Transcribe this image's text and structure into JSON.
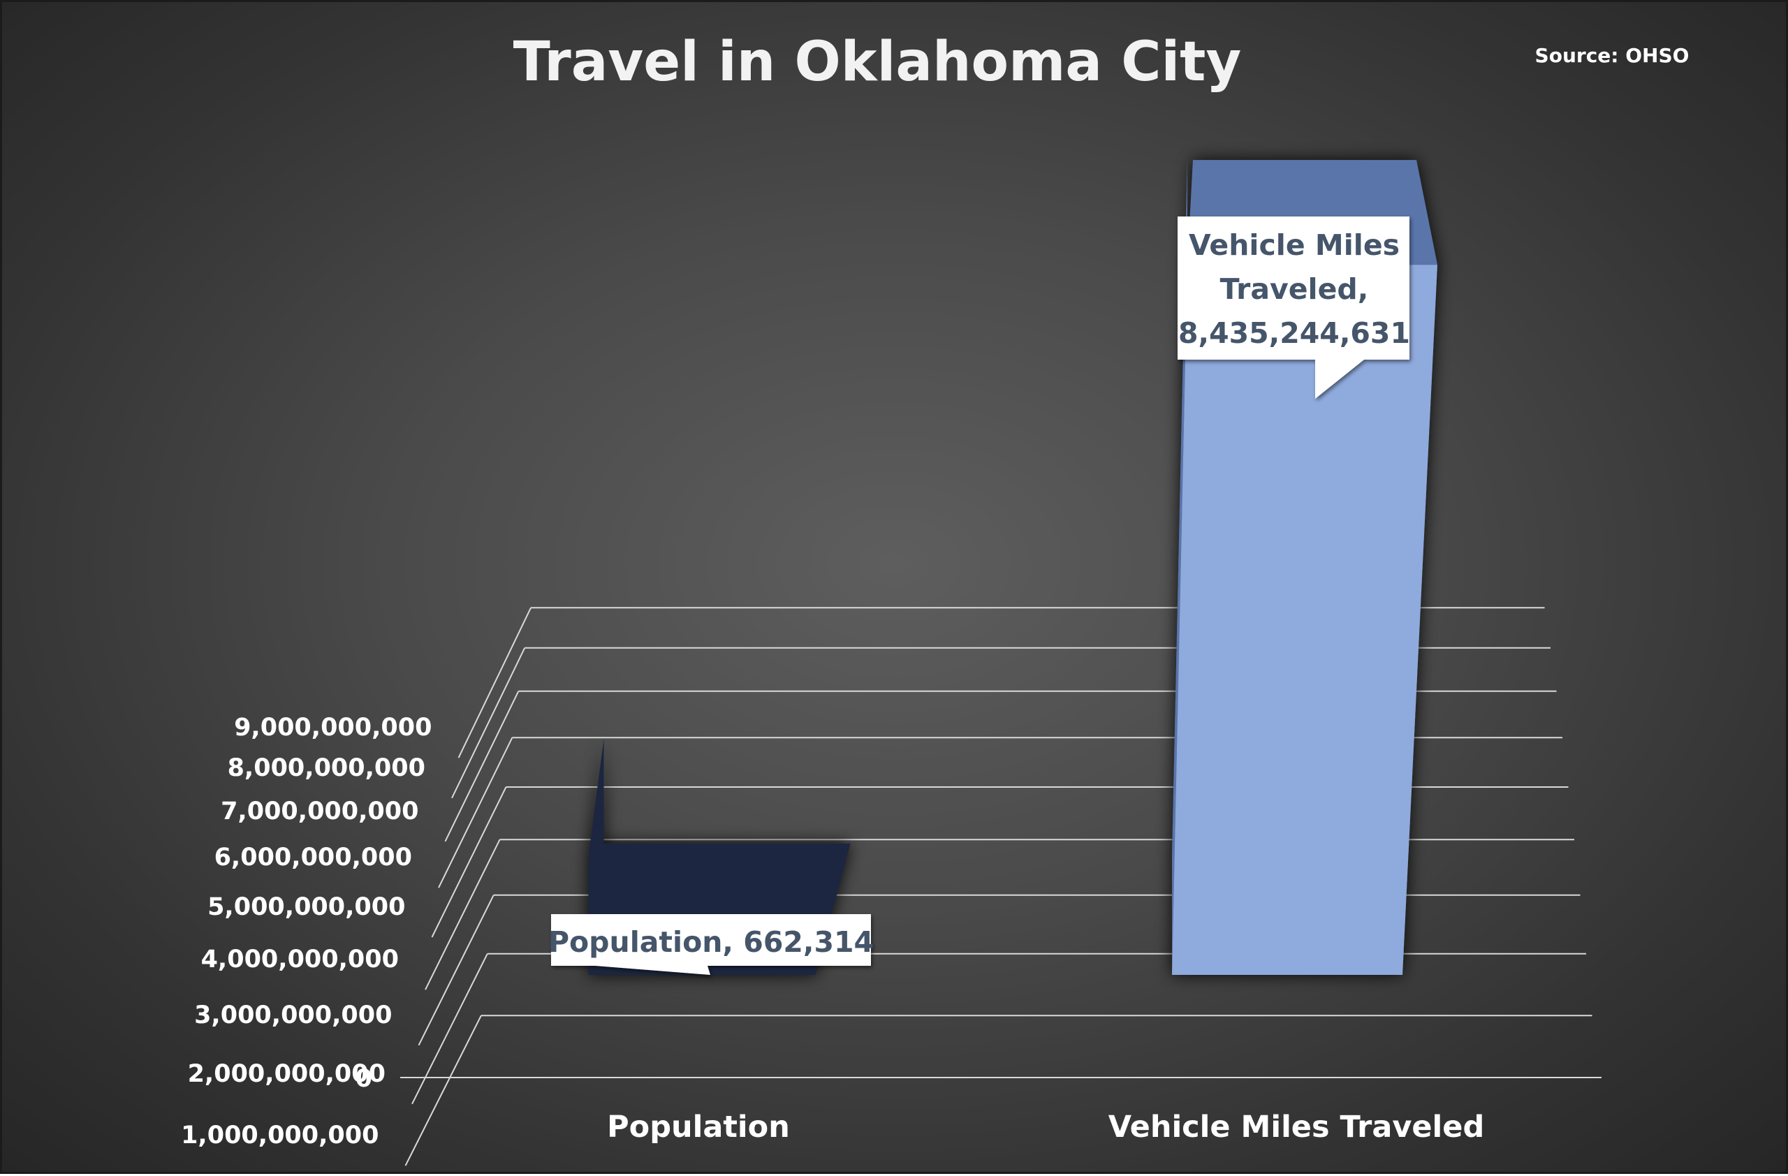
{
  "chart_data": {
    "type": "bar",
    "style": "3d-column",
    "title": "Travel in Oklahoma City",
    "source_note": "Source: OHSO",
    "categories": [
      "Population",
      "Vehicle Miles Traveled"
    ],
    "values": [
      662314,
      8435244631
    ],
    "data_labels": [
      [
        "Population, 662,314"
      ],
      [
        "Vehicle Miles",
        "Traveled,",
        "8,435,244,631"
      ]
    ],
    "y_ticks": [
      "0",
      "1,000,000,000",
      "2,000,000,000",
      "3,000,000,000",
      "4,000,000,000",
      "5,000,000,000",
      "6,000,000,000",
      "7,000,000,000",
      "8,000,000,000",
      "9,000,000,000"
    ],
    "ylim": [
      0,
      9000000000
    ],
    "grid": true,
    "legend": "none",
    "colors": {
      "population_bar": "#1c2640",
      "vmt_bar": "#8faadc",
      "vmt_bar_side": "#5a75aa",
      "label_text": "#44546a",
      "background": "#4a4a4a",
      "text": "#ffffff"
    }
  }
}
